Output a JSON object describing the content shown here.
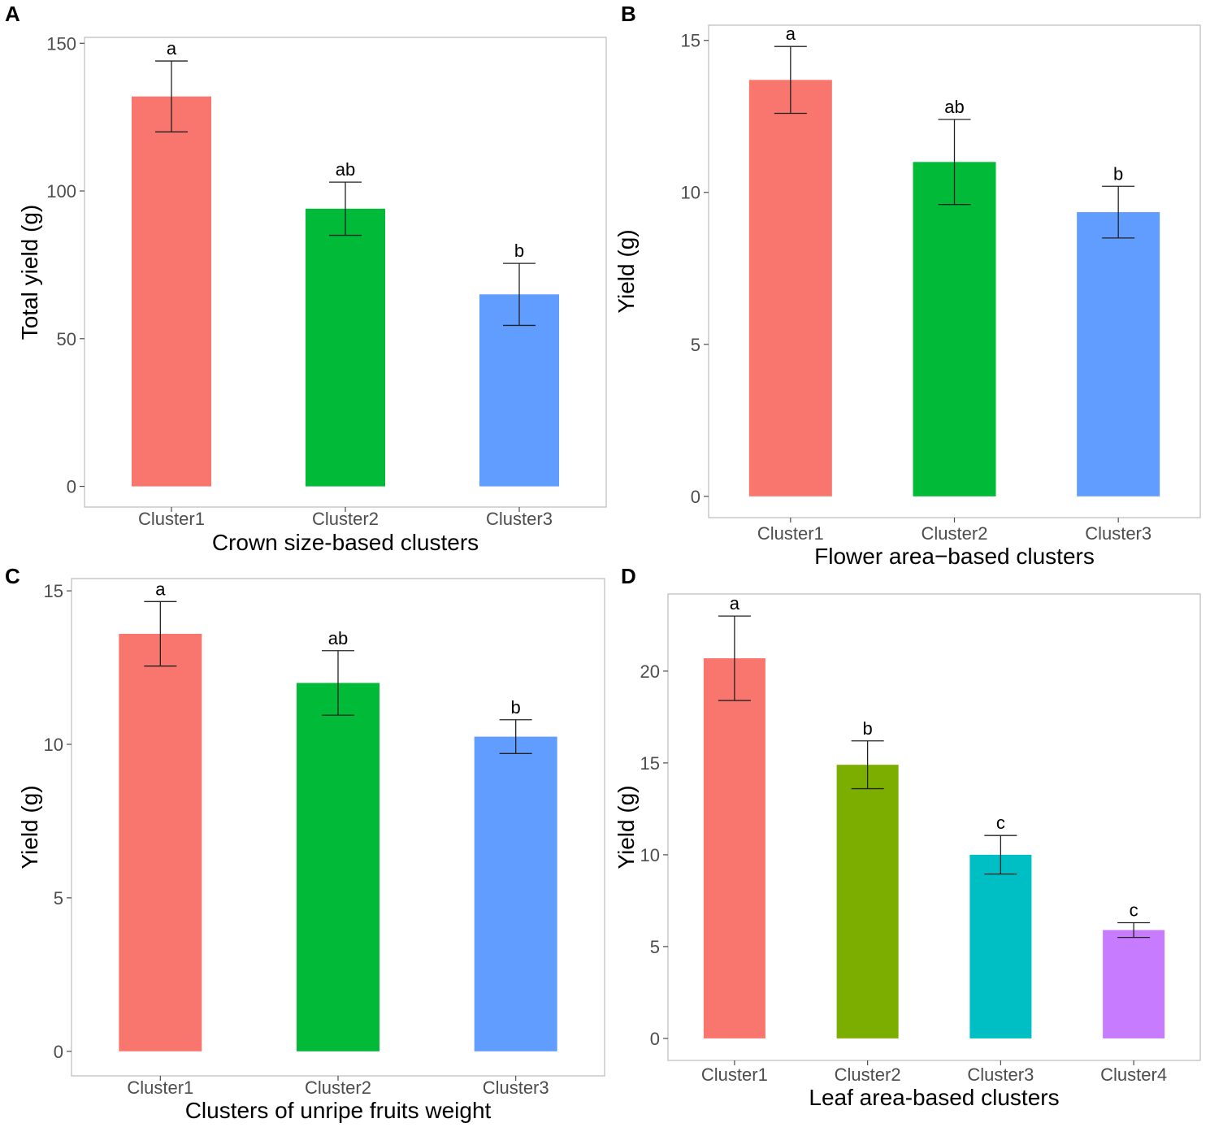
{
  "chart_data": [
    {
      "panel": "A",
      "type": "bar",
      "xlabel": "Crown size-based clusters",
      "ylabel": "Total yield (g)",
      "ylim": [
        -7,
        152
      ],
      "yticks": [
        0,
        50,
        100,
        150
      ],
      "categories": [
        "Cluster1",
        "Cluster2",
        "Cluster3"
      ],
      "values": [
        132,
        94,
        65
      ],
      "errors": [
        12,
        9,
        10.5
      ],
      "significance": [
        "a",
        "ab",
        "b"
      ],
      "colors": [
        "#F8766D",
        "#00BA38",
        "#619CFF"
      ]
    },
    {
      "panel": "B",
      "type": "bar",
      "xlabel": "Flower area−based clusters",
      "ylabel": "Yield (g)",
      "ylim": [
        -0.7,
        15.5
      ],
      "yticks": [
        0,
        5,
        10,
        15
      ],
      "categories": [
        "Cluster1",
        "Cluster2",
        "Cluster3"
      ],
      "values": [
        13.7,
        11.0,
        9.35
      ],
      "errors": [
        1.1,
        1.4,
        0.85
      ],
      "significance": [
        "a",
        "ab",
        "b"
      ],
      "colors": [
        "#F8766D",
        "#00BA38",
        "#619CFF"
      ]
    },
    {
      "panel": "C",
      "type": "bar",
      "xlabel": "Clusters of unripe fruits weight",
      "ylabel": "Yield (g)",
      "ylim": [
        -0.8,
        15.4
      ],
      "yticks": [
        0,
        5,
        10,
        15
      ],
      "categories": [
        "Cluster1",
        "Cluster2",
        "Cluster3"
      ],
      "values": [
        13.6,
        12.0,
        10.25
      ],
      "errors": [
        1.05,
        1.05,
        0.55
      ],
      "significance": [
        "a",
        "ab",
        "b"
      ],
      "colors": [
        "#F8766D",
        "#00BA38",
        "#619CFF"
      ]
    },
    {
      "panel": "D",
      "type": "bar",
      "xlabel": "Leaf area-based clusters",
      "ylabel": "Yield (g)",
      "ylim": [
        -1.2,
        24.2
      ],
      "yticks": [
        0,
        5,
        10,
        15,
        20
      ],
      "categories": [
        "Cluster1",
        "Cluster2",
        "Cluster3",
        "Cluster4"
      ],
      "values": [
        20.7,
        14.9,
        10.0,
        5.9
      ],
      "errors": [
        2.3,
        1.3,
        1.05,
        0.4
      ],
      "significance": [
        "a",
        "b",
        "c",
        "c"
      ],
      "colors": [
        "#F8766D",
        "#7CAE00",
        "#00BFC4",
        "#C77CFF"
      ]
    }
  ]
}
